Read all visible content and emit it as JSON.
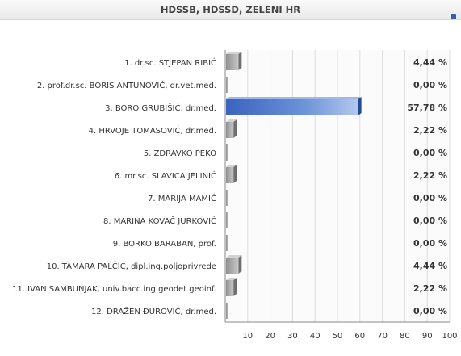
{
  "header": {
    "title": "HDSSB, HDSSD, ZELENI HR"
  },
  "chart_data": {
    "type": "bar",
    "orientation": "horizontal",
    "title": "HDSSB, HDSSD, ZELENI HR",
    "xlabel": "",
    "ylabel": "",
    "xlim": [
      0,
      100
    ],
    "ticks": [
      10,
      20,
      30,
      40,
      50,
      60,
      70,
      80,
      90,
      100
    ],
    "grid": true,
    "categories": [
      "1. dr.sc. STJEPAN RIBIĆ",
      "2. prof.dr.sc. BORIS ANTUNOVIĆ, dr.vet.med.",
      "3. BORO GRUBIŠIĆ, dr.med.",
      "4. HRVOJE TOMASOVIĆ, dr.med.",
      "5. ZDRAVKO PEKO",
      "6. mr.sc. SLAVICA JELINIĆ",
      "7. MARIJA MAMIĆ",
      "8. MARINA KOVAČ JURKOVIĆ",
      "9. BORKO BARABAN, prof.",
      "10. TAMARA PALČIĆ, dipl.ing.poljoprivrede",
      "11. IVAN SAMBUNJAK, univ.bacc.ing.geodet geoinf.",
      "12. DRAŽEN ĐUROVIĆ, dr.med."
    ],
    "values": [
      4.44,
      0.0,
      57.78,
      2.22,
      0.0,
      2.22,
      0.0,
      0.0,
      0.0,
      4.44,
      2.22,
      0.0
    ],
    "value_labels": [
      "4,44 %",
      "0,00 %",
      "57,78 %",
      "2,22 %",
      "0,00 %",
      "2,22 %",
      "0,00 %",
      "0,00 %",
      "0,00 %",
      "4,44 %",
      "2,22 %",
      "0,00 %"
    ],
    "highlight_index": 2,
    "colors": {
      "highlight": "#3f6fc6",
      "normal": "#9a9a9a",
      "grid": "#dddddd",
      "axis": "#888888"
    }
  }
}
